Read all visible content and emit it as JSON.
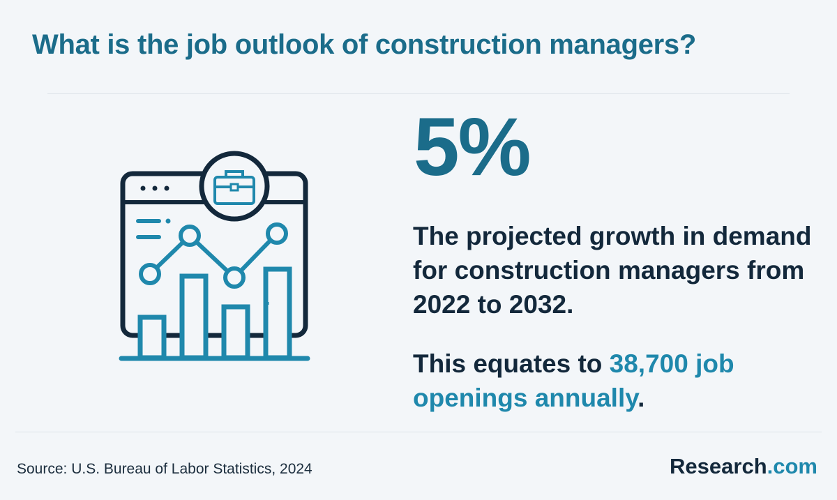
{
  "title": "What is the job outlook of construction managers?",
  "stat": {
    "value": "5%",
    "description": "The projected growth in demand for construction managers from 2022 to 2032.",
    "equates_prefix": "This equates to ",
    "equates_highlight": "38,700 job openings annually",
    "equates_suffix": "."
  },
  "illustration": {
    "icon": "growth-chart-briefcase-icon",
    "colors": {
      "dark": "#13283b",
      "accent": "#1f88ac"
    }
  },
  "footer": {
    "source": "Source: U.S. Bureau of Labor Statistics, 2024",
    "brand_name": "Research",
    "brand_suffix": ".com"
  },
  "colors": {
    "background": "#f3f6f9",
    "title": "#1b6c8a",
    "text": "#13283b",
    "highlight": "#1f88ac"
  }
}
